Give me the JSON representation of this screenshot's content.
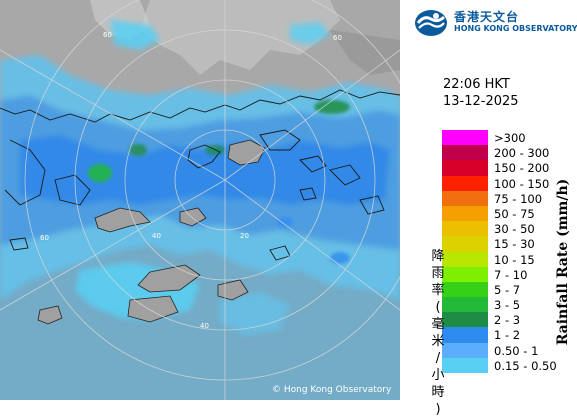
{
  "header": {
    "org_zh": "香港天文台",
    "org_en": "HONG KONG OBSERVATORY",
    "logo_icon": "hko-logo-icon"
  },
  "timestamp": {
    "time": "22:06 HKT",
    "date": "13-12-2025"
  },
  "legend": {
    "title_en": "Rainfall Rate (mm/h)",
    "title_zh": "降雨率(毫米/小時)",
    "items": [
      {
        "label": ">300",
        "color": "#ff00ff"
      },
      {
        "label": "200 - 300",
        "color": "#c0004a"
      },
      {
        "label": "150 - 200",
        "color": "#d8002a"
      },
      {
        "label": "100 - 150",
        "color": "#ff2000"
      },
      {
        "label": "75 - 100",
        "color": "#f07010"
      },
      {
        "label": "50 - 75",
        "color": "#f5a000"
      },
      {
        "label": "30 - 50",
        "color": "#ecc000"
      },
      {
        "label": "15 - 30",
        "color": "#dcd200"
      },
      {
        "label": "10 - 15",
        "color": "#b8e600"
      },
      {
        "label": "7 - 10",
        "color": "#7cf000"
      },
      {
        "label": "5 - 7",
        "color": "#36d016"
      },
      {
        "label": "3 - 5",
        "color": "#22b838"
      },
      {
        "label": "2 - 3",
        "color": "#1e8c44"
      },
      {
        "label": "1 - 2",
        "color": "#2e8cf0"
      },
      {
        "label": "0.50 - 1",
        "color": "#5aaefa"
      },
      {
        "label": "0.15 - 0.50",
        "color": "#58d0f4"
      }
    ]
  },
  "map": {
    "range_ring_labels": [
      "60",
      "60",
      "60",
      "40",
      "40",
      "20"
    ],
    "credit": "© Hong Kong Observatory",
    "colors": {
      "sea": "#7eb0c8",
      "land": "#a8a8a8",
      "rain_light": "#66c0e8",
      "rain_mid": "#4a9ae0",
      "rain_heavy": "#2a7ae8"
    }
  }
}
